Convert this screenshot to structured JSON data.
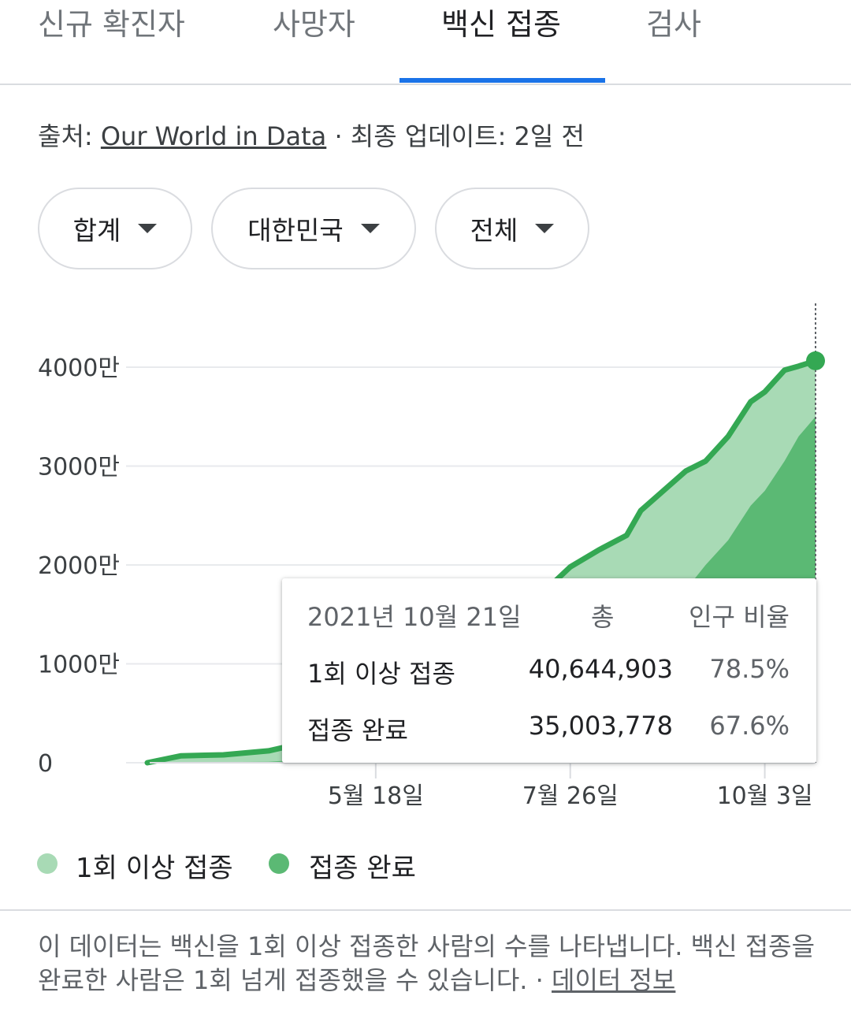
{
  "tabs": [
    {
      "label": "신규 확진자"
    },
    {
      "label": "사망자"
    },
    {
      "label": "백신 접종"
    },
    {
      "label": "검사"
    }
  ],
  "source": {
    "prefix": "출처: ",
    "link": "Our World in Data",
    "suffix": " · 최종 업데이트: 2일 전"
  },
  "filters": [
    {
      "label": "합계"
    },
    {
      "label": "대한민국"
    },
    {
      "label": "전체"
    }
  ],
  "colors": {
    "accent": "#1a73e8",
    "at_least_one_fill": "#a8dab5",
    "fully_fill": "#5bb974",
    "line": "#34a853"
  },
  "chart_data": {
    "type": "area",
    "ylim": [
      0,
      45000000
    ],
    "y_ticks": [
      {
        "value": 0,
        "label": "0"
      },
      {
        "value": 10000000,
        "label": "1000만"
      },
      {
        "value": 20000000,
        "label": "2000만"
      },
      {
        "value": 30000000,
        "label": "3000만"
      },
      {
        "value": 40000000,
        "label": "4000만"
      }
    ],
    "x_range": [
      "2021-02-26",
      "2021-10-21"
    ],
    "x_ticks": [
      {
        "date": "2021-05-18",
        "label": "5월 18일"
      },
      {
        "date": "2021-07-26",
        "label": "7월 26일"
      },
      {
        "date": "2021-10-03",
        "label": "10월 3일"
      }
    ],
    "legend_position": "bottom",
    "series": [
      {
        "name": "1회 이상 접종",
        "points": [
          [
            "2021-02-26",
            0
          ],
          [
            "2021-03-10",
            700000
          ],
          [
            "2021-03-25",
            800000
          ],
          [
            "2021-04-10",
            1200000
          ],
          [
            "2021-04-30",
            2500000
          ],
          [
            "2021-05-18",
            3700000
          ],
          [
            "2021-06-05",
            6000000
          ],
          [
            "2021-06-20",
            14500000
          ],
          [
            "2021-07-10",
            15500000
          ],
          [
            "2021-07-26",
            19800000
          ],
          [
            "2021-08-05",
            21500000
          ],
          [
            "2021-08-15",
            23000000
          ],
          [
            "2021-08-20",
            25500000
          ],
          [
            "2021-08-28",
            27500000
          ],
          [
            "2021-09-05",
            29500000
          ],
          [
            "2021-09-12",
            30500000
          ],
          [
            "2021-09-20",
            33000000
          ],
          [
            "2021-09-28",
            36500000
          ],
          [
            "2021-10-03",
            37500000
          ],
          [
            "2021-10-10",
            39700000
          ],
          [
            "2021-10-15",
            40100000
          ],
          [
            "2021-10-21",
            40644903
          ]
        ]
      },
      {
        "name": "접종 완료",
        "points": [
          [
            "2021-02-26",
            0
          ],
          [
            "2021-04-10",
            100000
          ],
          [
            "2021-05-18",
            800000
          ],
          [
            "2021-06-10",
            2000000
          ],
          [
            "2021-06-25",
            5500000
          ],
          [
            "2021-07-26",
            7000000
          ],
          [
            "2021-08-10",
            10000000
          ],
          [
            "2021-08-25",
            13500000
          ],
          [
            "2021-09-05",
            17500000
          ],
          [
            "2021-09-12",
            20000000
          ],
          [
            "2021-09-20",
            22500000
          ],
          [
            "2021-09-28",
            26000000
          ],
          [
            "2021-10-03",
            27500000
          ],
          [
            "2021-10-10",
            30500000
          ],
          [
            "2021-10-15",
            33000000
          ],
          [
            "2021-10-21",
            35003778
          ]
        ]
      }
    ],
    "tooltip": {
      "date": "2021년 10월 21일",
      "col_total": "총",
      "col_ratio": "인구 비율",
      "rows": [
        {
          "label": "1회 이상 접종",
          "value": "40,644,903",
          "ratio": "78.5%"
        },
        {
          "label": "접종 완료",
          "value": "35,003,778",
          "ratio": "67.6%"
        }
      ]
    }
  },
  "legend": [
    {
      "label": "1회 이상 접종"
    },
    {
      "label": "접종 완료"
    }
  ],
  "footnote": {
    "text": "이 데이터는 백신을 1회 이상 접종한 사람의 수를 나타냅니다. 백신 접종을 완료한 사람은 1회 넘게 접종했을 수 있습니다. · ",
    "link": "데이터 정보"
  }
}
